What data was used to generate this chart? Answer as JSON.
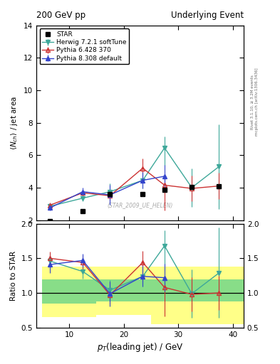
{
  "title_left": "200 GeV pp",
  "title_right": "Underlying Event",
  "ylabel_main": "<N_ch> / jet area",
  "ylabel_ratio": "Ratio to STAR",
  "xlabel": "p_{T}(leading jet) / GeV",
  "right_label_top": "Rivet 3.1.10, ≥ 3.2M events",
  "right_label_bottom": "mcplots.cern.ch [arXiv:1306.3436]",
  "watermark": "(STAR_2009_UE_HELEN)",
  "ylim_main": [
    2,
    14
  ],
  "ylim_ratio": [
    0.5,
    2.0
  ],
  "xlim": [
    4,
    42
  ],
  "star_x": [
    6.5,
    12.5,
    17.5,
    23.5,
    27.5,
    32.5,
    37.5
  ],
  "star_y": [
    1.95,
    2.55,
    3.6,
    3.6,
    3.85,
    4.05,
    4.1
  ],
  "herwig_x": [
    6.5,
    12.5,
    17.5,
    23.5,
    27.5,
    32.5,
    37.5
  ],
  "herwig_y": [
    2.85,
    3.35,
    3.75,
    4.45,
    6.45,
    4.0,
    5.3
  ],
  "herwig_eyl": [
    0.2,
    0.2,
    0.5,
    0.5,
    1.1,
    1.2,
    2.6
  ],
  "herwig_eyh": [
    0.2,
    0.2,
    0.5,
    0.5,
    0.7,
    1.2,
    2.6
  ],
  "herwig_color": "#3ea89a",
  "pythia6_x": [
    6.5,
    12.5,
    17.5,
    23.5,
    27.5,
    32.5,
    37.5
  ],
  "pythia6_y": [
    2.92,
    3.68,
    3.5,
    5.2,
    4.15,
    3.95,
    4.1
  ],
  "pythia6_eyl": [
    0.15,
    0.2,
    0.4,
    0.85,
    1.55,
    0.8,
    0.8
  ],
  "pythia6_eyh": [
    0.15,
    0.2,
    0.4,
    0.6,
    0.6,
    0.8,
    0.8
  ],
  "pythia6_color": "#cc3333",
  "pythia8_x": [
    6.5,
    12.5,
    17.5,
    23.5,
    27.5
  ],
  "pythia8_y": [
    2.75,
    3.75,
    3.55,
    4.45,
    4.7
  ],
  "pythia8_eyl": [
    0.15,
    0.25,
    0.6,
    0.5,
    0.7
  ],
  "pythia8_eyh": [
    0.15,
    0.25,
    0.6,
    0.5,
    0.7
  ],
  "pythia8_color": "#3344cc",
  "ratio_herwig_x": [
    6.5,
    12.5,
    17.5,
    23.5,
    27.5,
    32.5,
    37.5
  ],
  "ratio_herwig_y": [
    1.46,
    1.31,
    1.04,
    1.24,
    1.68,
    0.99,
    1.29
  ],
  "ratio_herwig_eyl": [
    0.12,
    0.1,
    0.15,
    0.15,
    0.35,
    0.35,
    0.65
  ],
  "ratio_herwig_eyh": [
    0.12,
    0.1,
    0.15,
    0.15,
    0.22,
    0.35,
    0.65
  ],
  "ratio_pythia6_x": [
    6.5,
    12.5,
    17.5,
    23.5,
    27.5,
    32.5,
    37.5
  ],
  "ratio_pythia6_y": [
    1.5,
    1.44,
    0.97,
    1.44,
    1.08,
    0.98,
    1.0
  ],
  "ratio_pythia6_eyl": [
    0.1,
    0.1,
    0.12,
    0.25,
    0.42,
    0.25,
    0.25
  ],
  "ratio_pythia6_eyh": [
    0.1,
    0.1,
    0.12,
    0.17,
    0.17,
    0.25,
    0.25
  ],
  "ratio_pythia8_x": [
    6.5,
    12.5,
    17.5,
    23.5,
    27.5
  ],
  "ratio_pythia8_y": [
    1.41,
    1.47,
    0.99,
    1.24,
    1.22
  ],
  "ratio_pythia8_eyl": [
    0.12,
    0.1,
    0.18,
    0.15,
    0.2
  ],
  "ratio_pythia8_eyh": [
    0.12,
    0.1,
    0.18,
    0.15,
    0.2
  ],
  "band_x_edges": [
    5,
    10,
    15,
    20,
    25,
    30,
    42
  ],
  "band_green_low": [
    0.85,
    0.85,
    0.88,
    0.88,
    0.88,
    0.88,
    0.88
  ],
  "band_green_high": [
    1.2,
    1.2,
    1.2,
    1.2,
    1.2,
    1.2,
    1.2
  ],
  "band_yellow_low": [
    0.65,
    0.65,
    0.68,
    0.68,
    0.55,
    0.55,
    0.55
  ],
  "band_yellow_high": [
    1.38,
    1.38,
    1.38,
    1.38,
    1.38,
    1.38,
    1.38
  ]
}
